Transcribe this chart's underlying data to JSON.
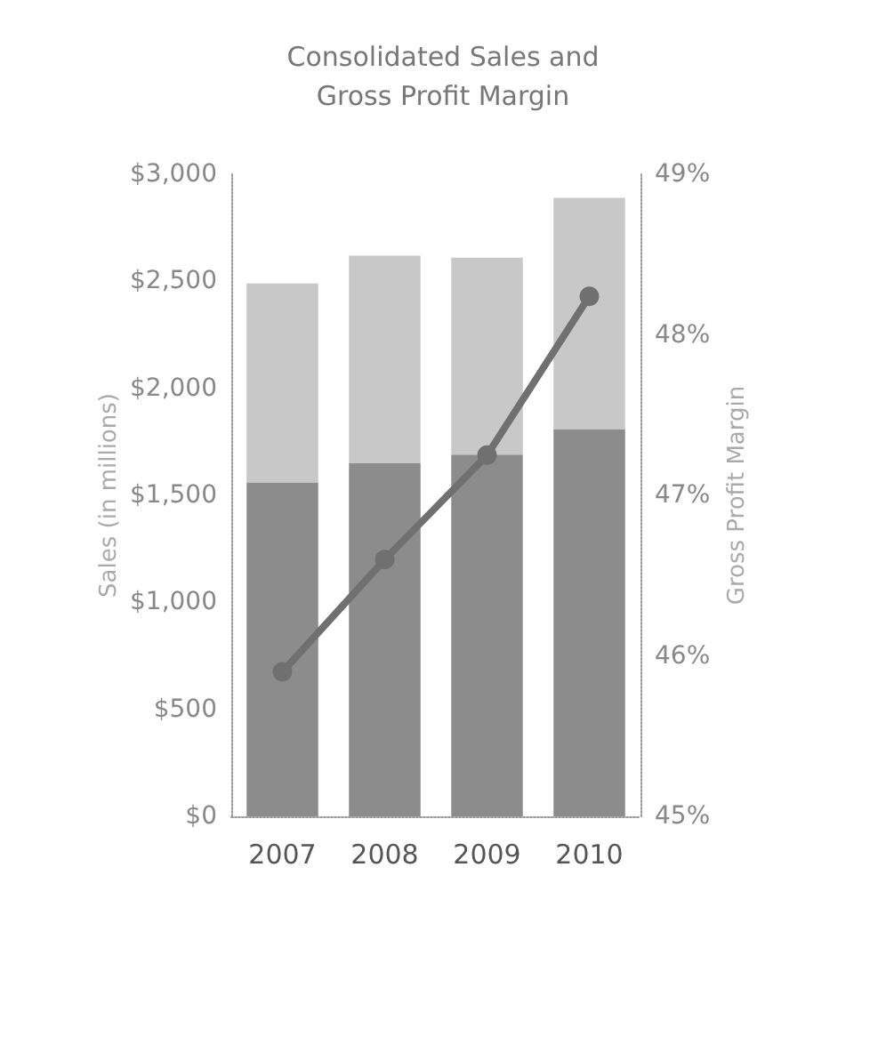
{
  "chart_data": {
    "type": "bar",
    "title": "Consolidated Sales and\nGross Profit Margin",
    "ylabel": "Sales (in millions)",
    "y2label": "Gross Profit Margin",
    "categories": [
      "2007",
      "2008",
      "2009",
      "2010"
    ],
    "stacked": true,
    "series": [
      {
        "color": "#8c8c8c",
        "values": [
          1560,
          1650,
          1690,
          1810
        ]
      },
      {
        "color": "#c8c8c8",
        "values": [
          930,
          970,
          920,
          1080
        ]
      },
      {
        "type": "line",
        "axis": "y2",
        "color": "#707070",
        "marker": "circle",
        "values": [
          45.9,
          46.6,
          47.25,
          48.24
        ]
      }
    ],
    "ylim": [
      0,
      3000
    ],
    "yticks": [
      {
        "value": 0,
        "label": "$0"
      },
      {
        "value": 500,
        "label": "$500"
      },
      {
        "value": 1000,
        "label": "$1,000"
      },
      {
        "value": 1500,
        "label": "$1,500"
      },
      {
        "value": 2000,
        "label": "$2,000"
      },
      {
        "value": 2500,
        "label": "$2,500"
      },
      {
        "value": 3000,
        "label": "$3,000"
      }
    ],
    "y2lim": [
      45,
      49
    ],
    "y2ticks": [
      {
        "value": 45,
        "label": "45%"
      },
      {
        "value": 46,
        "label": "46%"
      },
      {
        "value": 47,
        "label": "47%"
      },
      {
        "value": 48,
        "label": "48%"
      },
      {
        "value": 49,
        "label": "49%"
      }
    ],
    "grid": false
  }
}
